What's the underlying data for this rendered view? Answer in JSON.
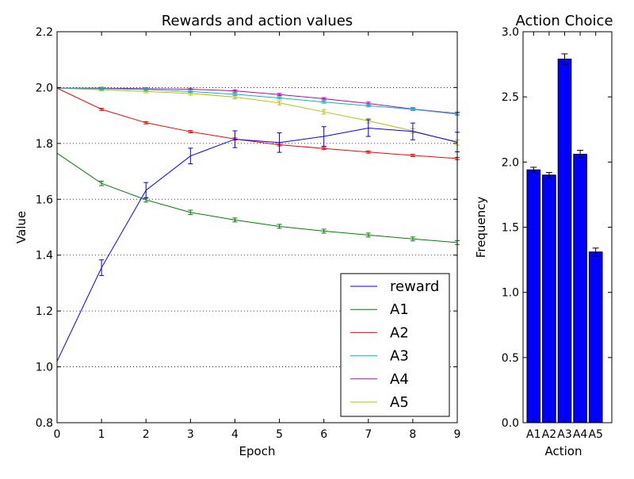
{
  "chart_data": [
    {
      "type": "line",
      "title": "Rewards and action values",
      "xlabel": "Epoch",
      "ylabel": "Value",
      "xlim": [
        0,
        9
      ],
      "ylim": [
        0.8,
        2.2
      ],
      "x": [
        0,
        1,
        2,
        3,
        4,
        5,
        6,
        7,
        8,
        9
      ],
      "xticks": [
        "0",
        "1",
        "2",
        "3",
        "4",
        "5",
        "6",
        "7",
        "8",
        "9"
      ],
      "yticks": [
        "0.8",
        "1.0",
        "1.2",
        "1.4",
        "1.6",
        "1.8",
        "2.0",
        "2.2"
      ],
      "ytick_values": [
        0.8,
        1.0,
        1.2,
        1.4,
        1.6,
        1.8,
        2.0,
        2.2
      ],
      "grid": "horizontal dotted",
      "legend_position": "lower-right",
      "series": [
        {
          "name": "reward",
          "color": "#0000ff",
          "values": [
            1.02,
            1.355,
            1.632,
            1.755,
            1.815,
            1.803,
            1.825,
            1.855,
            1.843,
            1.805
          ],
          "errors": [
            0.0,
            0.028,
            0.028,
            0.028,
            0.03,
            0.035,
            0.035,
            0.03,
            0.03,
            0.035
          ]
        },
        {
          "name": "A1",
          "color": "#008000",
          "values": [
            1.765,
            1.657,
            1.598,
            1.553,
            1.526,
            1.503,
            1.486,
            1.472,
            1.458,
            1.445
          ],
          "errors": [
            0.0,
            0.008,
            0.008,
            0.008,
            0.007,
            0.007,
            0.007,
            0.007,
            0.007,
            0.007
          ]
        },
        {
          "name": "A2",
          "color": "#ff0000",
          "values": [
            1.998,
            1.922,
            1.874,
            1.842,
            1.816,
            1.795,
            1.782,
            1.769,
            1.757,
            1.746
          ],
          "errors": [
            0.0,
            0.004,
            0.004,
            0.004,
            0.004,
            0.004,
            0.004,
            0.004,
            0.004,
            0.004
          ]
        },
        {
          "name": "A3",
          "color": "#00bfbf",
          "values": [
            1.998,
            1.996,
            1.993,
            1.986,
            1.976,
            1.963,
            1.948,
            1.935,
            1.922,
            1.905
          ],
          "errors": [
            0.0,
            0.004,
            0.004,
            0.004,
            0.004,
            0.004,
            0.004,
            0.004,
            0.004,
            0.004
          ]
        },
        {
          "name": "A4",
          "color": "#bf00bf",
          "values": [
            1.998,
            1.998,
            1.996,
            1.994,
            1.988,
            1.975,
            1.96,
            1.943,
            1.923,
            1.907
          ],
          "errors": [
            0.0,
            0.003,
            0.003,
            0.004,
            0.004,
            0.004,
            0.004,
            0.005,
            0.005,
            0.005
          ]
        },
        {
          "name": "A5",
          "color": "#bfbf00",
          "values": [
            1.998,
            1.992,
            1.986,
            1.979,
            1.966,
            1.945,
            1.913,
            1.881,
            1.845,
            1.803
          ],
          "errors": [
            0.0,
            0.004,
            0.005,
            0.006,
            0.006,
            0.007,
            0.008,
            0.008,
            0.008,
            0.009
          ]
        }
      ]
    },
    {
      "type": "bar",
      "title": "Action Choice",
      "xlabel": "Action",
      "ylabel": "Frequency",
      "ylim": [
        0.0,
        3.0
      ],
      "categories": [
        "A1",
        "A2",
        "A3",
        "A4",
        "A5"
      ],
      "values": [
        1.94,
        1.9,
        2.79,
        2.06,
        1.31
      ],
      "errors": [
        0.02,
        0.02,
        0.04,
        0.03,
        0.03
      ],
      "yticks": [
        "0.0",
        "0.5",
        "1.0",
        "1.5",
        "2.0",
        "2.5",
        "3.0"
      ],
      "ytick_values": [
        0.0,
        0.5,
        1.0,
        1.5,
        2.0,
        2.5,
        3.0
      ],
      "color": "#0000ff"
    }
  ]
}
